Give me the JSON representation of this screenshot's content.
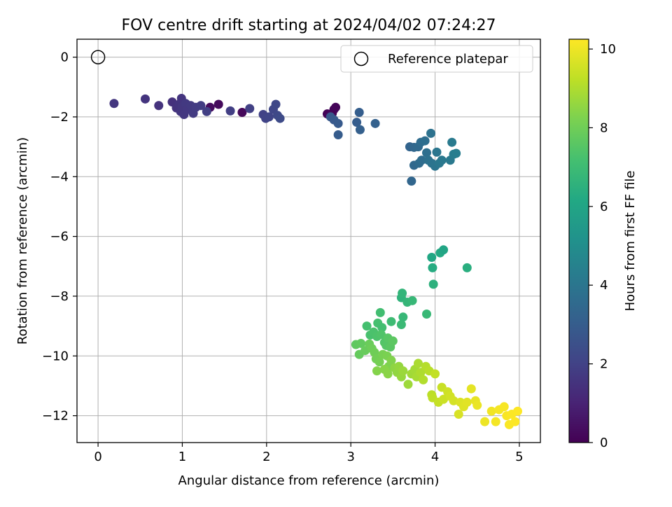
{
  "chart_data": {
    "type": "scatter",
    "title": "FOV centre drift starting at 2024/04/02 07:24:27",
    "xlabel": "Angular distance from reference (arcmin)",
    "ylabel": "Rotation from reference (arcmin)",
    "xlim": [
      -0.25,
      5.25
    ],
    "ylim": [
      -12.9,
      0.6
    ],
    "xticks": [
      0,
      1,
      2,
      3,
      4,
      5
    ],
    "xtick_labels": [
      "0",
      "1",
      "2",
      "3",
      "4",
      "5"
    ],
    "yticks": [
      0,
      -2,
      -4,
      -6,
      -8,
      -10,
      -12
    ],
    "ytick_labels": [
      "0",
      "−2",
      "−4",
      "−6",
      "−8",
      "−10",
      "−12"
    ],
    "grid": true,
    "legend": {
      "position": "top-right",
      "entries": [
        "Reference platepar"
      ]
    },
    "reference_point": {
      "x": 0,
      "y": 0,
      "label": "Reference platepar"
    },
    "colorbar": {
      "label": "Hours from first FF file",
      "colormap": "viridis",
      "range": [
        0,
        10.25
      ],
      "ticks": [
        0,
        2,
        4,
        6,
        8,
        10
      ],
      "tick_labels": [
        "0",
        "2",
        "4",
        "6",
        "8",
        "10"
      ]
    },
    "points": [
      [
        2.72,
        -1.9,
        0.05
      ],
      [
        2.78,
        -1.88,
        0.08
      ],
      [
        2.8,
        -1.75,
        0.1
      ],
      [
        2.82,
        -1.68,
        0.12
      ],
      [
        2.75,
        -1.95,
        0.15
      ],
      [
        1.71,
        -1.85,
        0.2
      ],
      [
        1.43,
        -1.58,
        0.25
      ],
      [
        1.33,
        -1.68,
        0.3
      ],
      [
        0.19,
        -1.55,
        1.6
      ],
      [
        0.56,
        -1.4,
        1.55
      ],
      [
        0.72,
        -1.62,
        1.5
      ],
      [
        0.88,
        -1.5,
        1.45
      ],
      [
        0.93,
        -1.7,
        1.5
      ],
      [
        0.96,
        -1.58,
        1.55
      ],
      [
        0.98,
        -1.82,
        1.6
      ],
      [
        0.99,
        -1.38,
        1.58
      ],
      [
        1.0,
        -1.65,
        1.62
      ],
      [
        1.02,
        -1.92,
        1.66
      ],
      [
        1.04,
        -1.55,
        1.7
      ],
      [
        1.06,
        -1.75,
        1.68
      ],
      [
        1.1,
        -1.62,
        1.72
      ],
      [
        1.13,
        -1.88,
        1.76
      ],
      [
        1.16,
        -1.68,
        1.8
      ],
      [
        1.22,
        -1.62,
        1.84
      ],
      [
        1.29,
        -1.82,
        1.88
      ],
      [
        1.57,
        -1.8,
        1.9
      ],
      [
        1.8,
        -1.72,
        1.95
      ],
      [
        1.96,
        -1.92,
        2.0
      ],
      [
        1.99,
        -2.05,
        2.05
      ],
      [
        2.03,
        -2.0,
        2.1
      ],
      [
        2.08,
        -1.75,
        2.15
      ],
      [
        2.11,
        -1.58,
        2.2
      ],
      [
        2.13,
        -1.95,
        2.25
      ],
      [
        2.16,
        -2.05,
        2.3
      ],
      [
        2.76,
        -2.0,
        2.8
      ],
      [
        2.8,
        -2.1,
        2.85
      ],
      [
        2.85,
        -2.22,
        2.9
      ],
      [
        2.85,
        -2.6,
        2.95
      ],
      [
        3.07,
        -2.18,
        3.0
      ],
      [
        3.1,
        -1.85,
        3.05
      ],
      [
        3.11,
        -2.43,
        3.1
      ],
      [
        3.29,
        -2.22,
        3.15
      ],
      [
        3.7,
        -3.0,
        3.3
      ],
      [
        3.72,
        -4.15,
        3.35
      ],
      [
        3.75,
        -3.02,
        3.4
      ],
      [
        3.75,
        -3.62,
        3.45
      ],
      [
        3.8,
        -3.0,
        3.5
      ],
      [
        3.81,
        -3.55,
        3.55
      ],
      [
        3.83,
        -2.85,
        3.6
      ],
      [
        3.84,
        -3.45,
        3.65
      ],
      [
        3.88,
        -2.8,
        3.7
      ],
      [
        3.9,
        -3.2,
        3.75
      ],
      [
        3.92,
        -3.45,
        3.8
      ],
      [
        3.95,
        -2.55,
        3.85
      ],
      [
        3.96,
        -3.55,
        3.9
      ],
      [
        4.0,
        -3.65,
        3.95
      ],
      [
        4.02,
        -3.18,
        4.0
      ],
      [
        4.05,
        -3.55,
        4.05
      ],
      [
        4.08,
        -3.45,
        4.1
      ],
      [
        4.18,
        -3.45,
        4.15
      ],
      [
        4.2,
        -2.85,
        4.2
      ],
      [
        4.22,
        -3.25,
        4.25
      ],
      [
        4.25,
        -3.22,
        4.3
      ],
      [
        3.96,
        -6.7,
        6.1
      ],
      [
        3.97,
        -7.05,
        6.3
      ],
      [
        3.98,
        -7.6,
        6.5
      ],
      [
        4.06,
        -6.55,
        6.2
      ],
      [
        4.1,
        -6.45,
        6.0
      ],
      [
        4.38,
        -7.05,
        6.4
      ],
      [
        3.6,
        -8.05,
        6.6
      ],
      [
        3.61,
        -7.9,
        6.7
      ],
      [
        3.62,
        -8.7,
        6.8
      ],
      [
        3.6,
        -8.95,
        6.9
      ],
      [
        3.67,
        -8.2,
        6.75
      ],
      [
        3.73,
        -8.15,
        6.8
      ],
      [
        3.9,
        -8.6,
        6.85
      ],
      [
        3.48,
        -8.85,
        7.0
      ],
      [
        3.35,
        -8.55,
        7.1
      ],
      [
        3.32,
        -8.9,
        7.2
      ],
      [
        3.37,
        -9.05,
        7.15
      ],
      [
        3.19,
        -9.0,
        7.2
      ],
      [
        3.23,
        -9.3,
        7.25
      ],
      [
        3.27,
        -9.2,
        7.3
      ],
      [
        3.31,
        -9.35,
        7.35
      ],
      [
        3.36,
        -9.28,
        7.4
      ],
      [
        3.4,
        -9.55,
        7.45
      ],
      [
        3.42,
        -9.65,
        7.5
      ],
      [
        3.44,
        -9.4,
        7.55
      ],
      [
        3.47,
        -9.7,
        7.6
      ],
      [
        3.5,
        -9.5,
        7.65
      ],
      [
        3.06,
        -9.62,
        7.7
      ],
      [
        3.12,
        -9.58,
        7.75
      ],
      [
        3.1,
        -9.95,
        7.8
      ],
      [
        3.17,
        -9.82,
        7.85
      ],
      [
        3.22,
        -9.6,
        7.9
      ],
      [
        3.25,
        -9.75,
        7.95
      ],
      [
        3.28,
        -9.88,
        8.0
      ],
      [
        3.3,
        -10.1,
        8.05
      ],
      [
        3.34,
        -10.2,
        8.1
      ],
      [
        3.38,
        -9.95,
        8.15
      ],
      [
        3.43,
        -10.0,
        8.2
      ],
      [
        3.45,
        -10.35,
        8.25
      ],
      [
        3.48,
        -10.15,
        8.3
      ],
      [
        3.31,
        -10.5,
        8.35
      ],
      [
        3.4,
        -10.45,
        8.4
      ],
      [
        3.44,
        -10.6,
        8.45
      ],
      [
        3.52,
        -10.4,
        8.5
      ],
      [
        3.55,
        -10.55,
        8.55
      ],
      [
        3.57,
        -10.35,
        8.6
      ],
      [
        3.6,
        -10.7,
        8.65
      ],
      [
        3.62,
        -10.5,
        8.7
      ],
      [
        3.68,
        -10.95,
        8.75
      ],
      [
        3.72,
        -10.6,
        8.8
      ],
      [
        3.76,
        -10.45,
        8.85
      ],
      [
        3.78,
        -10.7,
        8.9
      ],
      [
        3.8,
        -10.25,
        8.95
      ],
      [
        3.83,
        -10.55,
        9.0
      ],
      [
        3.86,
        -10.8,
        9.05
      ],
      [
        3.89,
        -10.35,
        9.1
      ],
      [
        3.93,
        -10.5,
        9.15
      ],
      [
        3.96,
        -11.3,
        9.2
      ],
      [
        3.97,
        -11.4,
        9.25
      ],
      [
        4.0,
        -10.6,
        9.3
      ],
      [
        4.04,
        -11.55,
        9.35
      ],
      [
        4.08,
        -11.05,
        9.4
      ],
      [
        4.1,
        -11.45,
        9.45
      ],
      [
        4.15,
        -11.2,
        9.5
      ],
      [
        4.18,
        -11.35,
        9.55
      ],
      [
        4.22,
        -11.5,
        9.6
      ],
      [
        4.28,
        -11.95,
        9.65
      ],
      [
        4.3,
        -11.55,
        9.7
      ],
      [
        4.34,
        -11.7,
        9.75
      ],
      [
        4.38,
        -11.55,
        9.8
      ],
      [
        4.43,
        -11.1,
        9.85
      ],
      [
        4.48,
        -11.5,
        9.9
      ],
      [
        4.5,
        -11.65,
        9.95
      ],
      [
        4.59,
        -12.2,
        10.0
      ],
      [
        4.67,
        -11.85,
        10.05
      ],
      [
        4.72,
        -12.2,
        10.1
      ],
      [
        4.76,
        -11.8,
        10.12
      ],
      [
        4.82,
        -11.7,
        10.15
      ],
      [
        4.85,
        -12.0,
        10.18
      ],
      [
        4.88,
        -12.3,
        10.2
      ],
      [
        4.91,
        -11.95,
        10.22
      ],
      [
        4.95,
        -12.2,
        10.24
      ],
      [
        4.98,
        -11.85,
        10.25
      ]
    ]
  }
}
